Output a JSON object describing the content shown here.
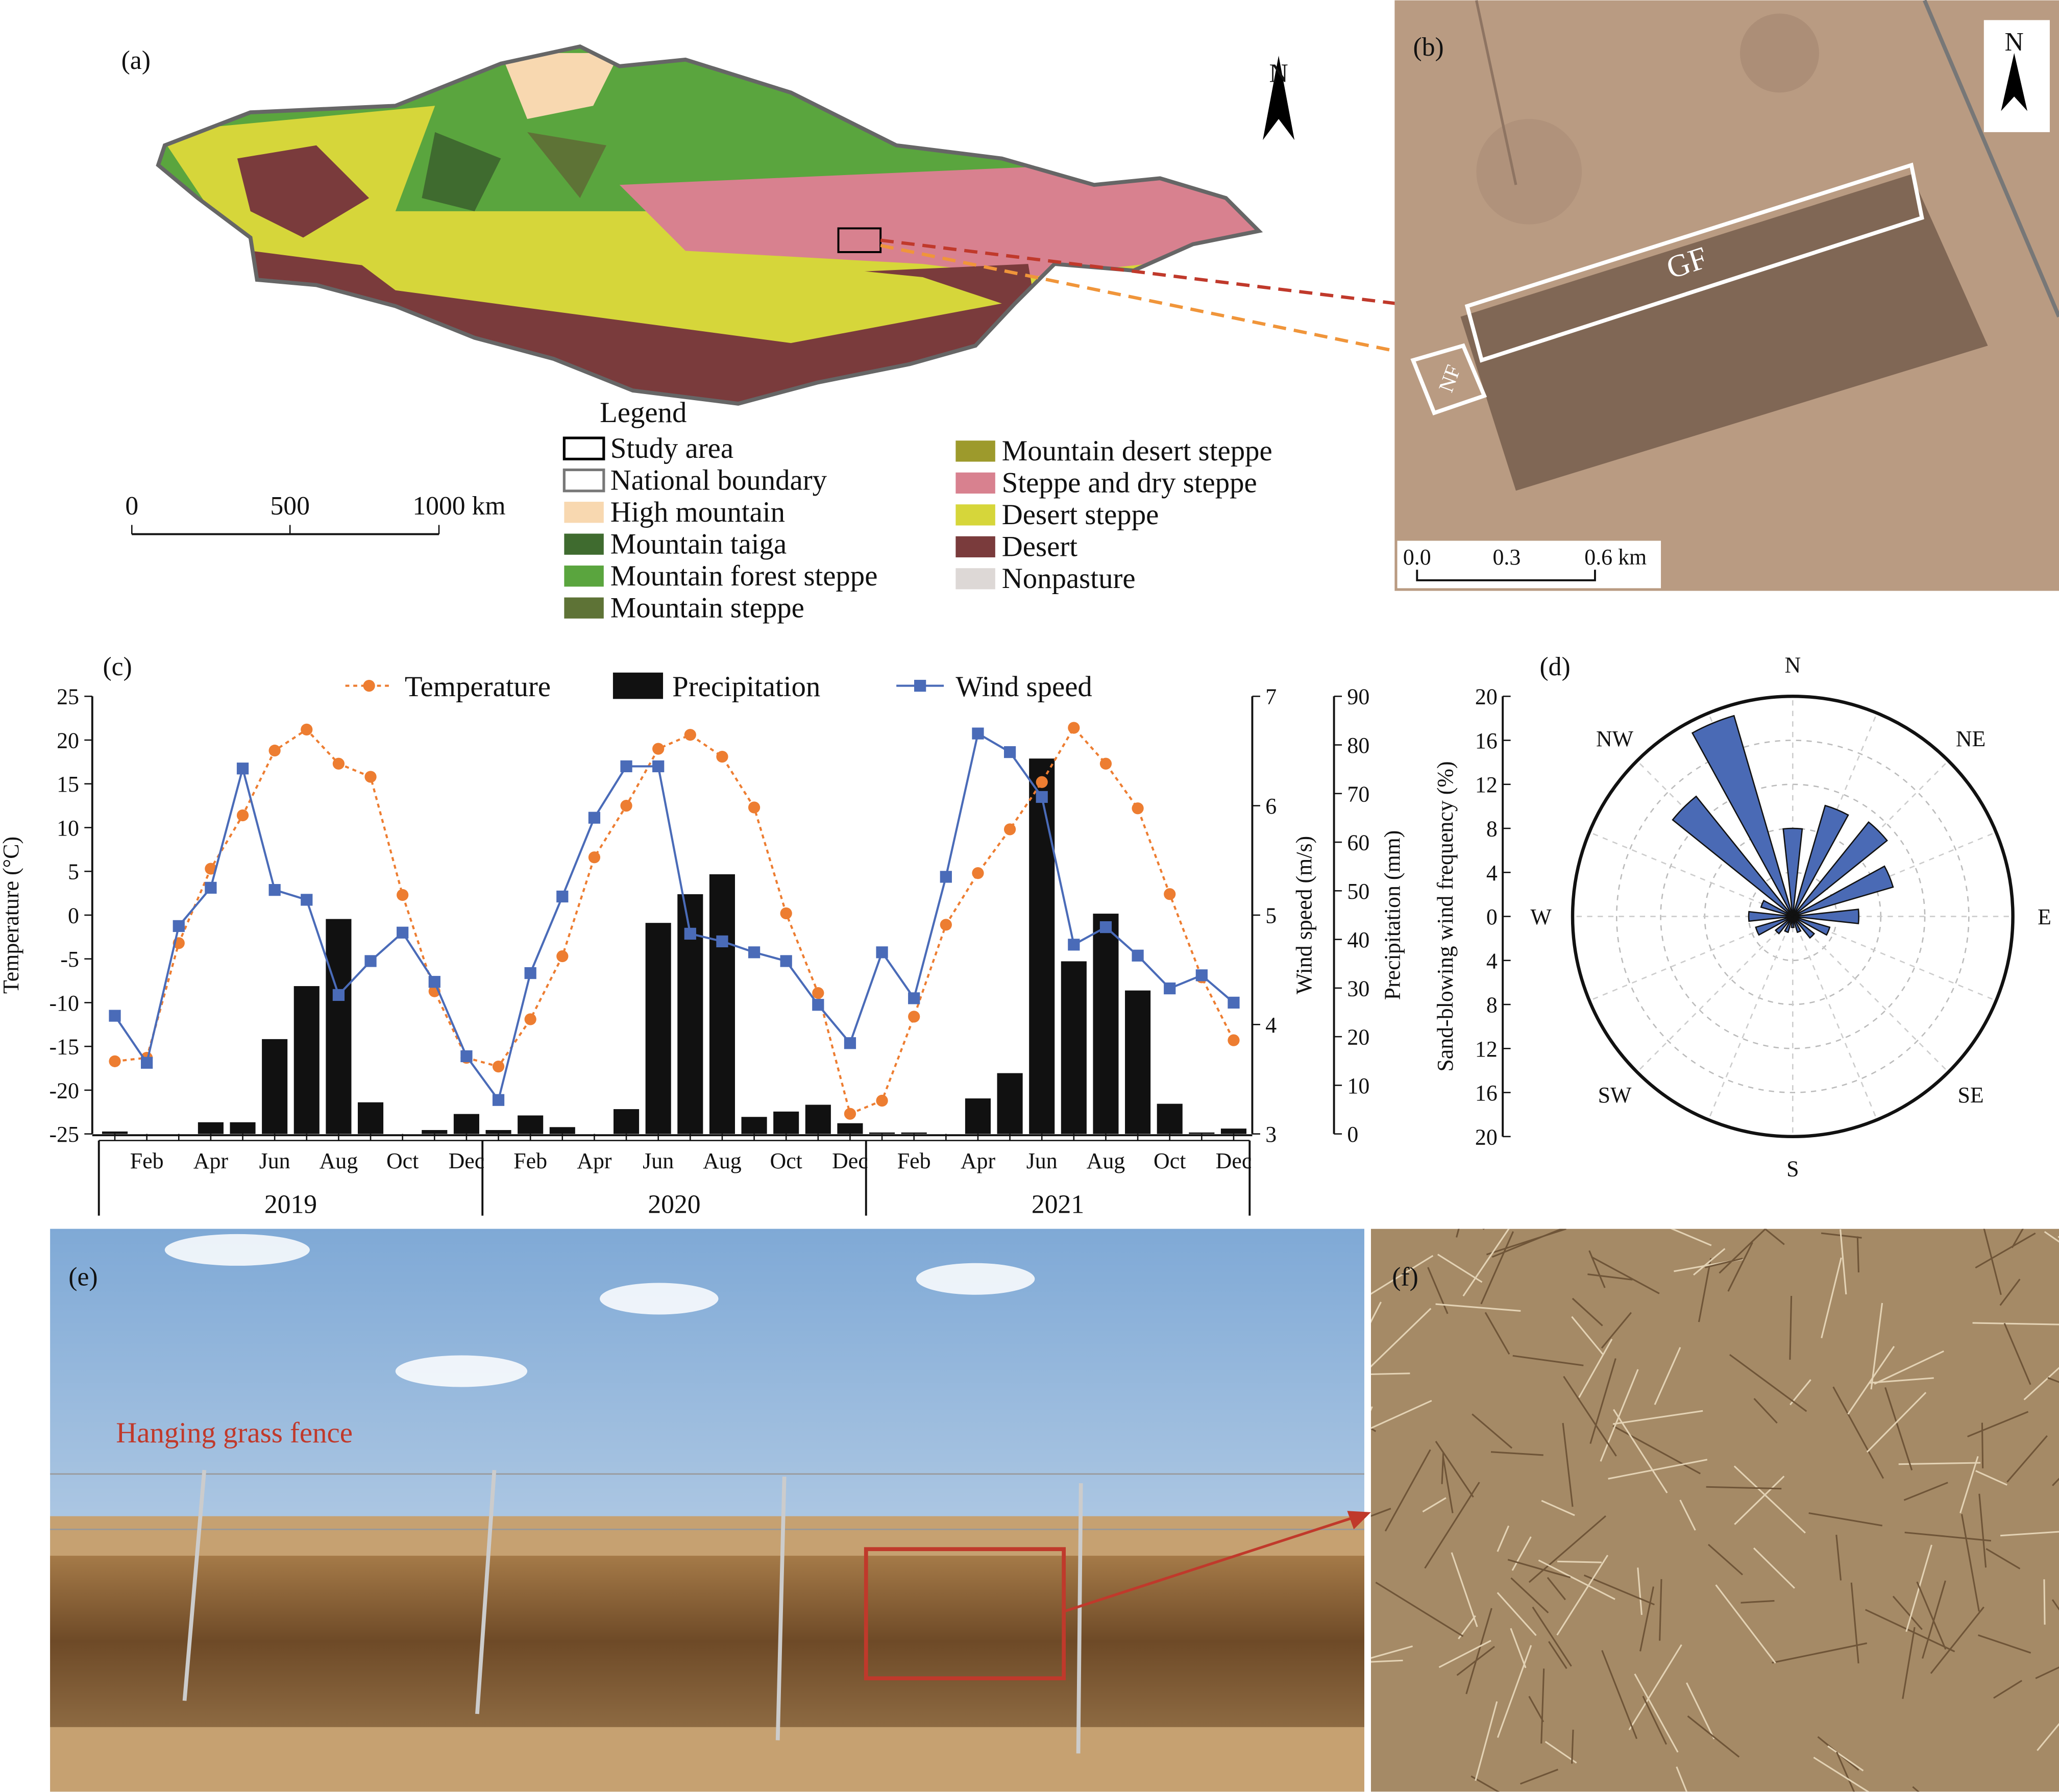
{
  "panels": {
    "a": {
      "label": "(a)",
      "north": "N",
      "legend_title": "Legend",
      "scale": [
        "0",
        "500",
        "1000 km"
      ],
      "legend": [
        {
          "label": "Study area",
          "color": "#ffffff",
          "outline": "#000000"
        },
        {
          "label": "National boundary",
          "color": "#ffffff",
          "outline": "#777777"
        },
        {
          "label": "High mountain",
          "color": "#f8d8b0"
        },
        {
          "label": "Mountain taiga",
          "color": "#3f6b2f"
        },
        {
          "label": "Mountain forest steppe",
          "color": "#5aa53e"
        },
        {
          "label": "Mountain steppe",
          "color": "#5e7336"
        },
        {
          "label": "Mountain desert steppe",
          "color": "#9d9a2c"
        },
        {
          "label": "Steppe and dry steppe",
          "color": "#d8818f"
        },
        {
          "label": "Desert steppe",
          "color": "#d6d63a"
        },
        {
          "label": "Desert",
          "color": "#7a3b3c"
        },
        {
          "label": "Nonpasture",
          "color": "#ddd8d6"
        }
      ]
    },
    "b": {
      "label": "(b)",
      "north": "N",
      "plots": [
        "GF",
        "NF"
      ],
      "scale": [
        "0.0",
        "0.3",
        "0.6 km"
      ]
    },
    "e": {
      "label": "(e)",
      "annotation": "Hanging grass fence"
    },
    "f": {
      "label": "(f)"
    }
  },
  "chart_data": [
    {
      "type": "combo",
      "label": "(c)",
      "categories": [
        null,
        "Feb",
        null,
        "Apr",
        null,
        "Jun",
        null,
        "Aug",
        null,
        "Oct",
        null,
        "Dec",
        null,
        "Feb",
        null,
        "Apr",
        null,
        "Jun",
        null,
        "Aug",
        null,
        "Oct",
        null,
        "Dec",
        null,
        "Feb",
        null,
        "Apr",
        null,
        "Jun",
        null,
        "Aug",
        null,
        "Oct",
        null,
        "Dec"
      ],
      "years": [
        "2019",
        "2020",
        "2021"
      ],
      "ylabel": "Temperature (°C)",
      "ylim": [
        -25,
        25
      ],
      "yticks": [
        -25,
        -20,
        -15,
        -10,
        -5,
        0,
        5,
        10,
        15,
        20,
        25
      ],
      "y2label": "Wind speed (m/s)",
      "y2lim": [
        3,
        7
      ],
      "y2ticks": [
        3,
        4,
        5,
        6,
        7
      ],
      "y3label": "Precipitation (mm)",
      "y3lim": [
        0,
        90
      ],
      "y3ticks": [
        0,
        10,
        20,
        30,
        40,
        50,
        60,
        70,
        80,
        90
      ],
      "series": [
        {
          "name": "Temperature",
          "type": "line",
          "axis": "y",
          "color": "#ed7d31",
          "marker": "circle",
          "linestyle": "dotted",
          "values": [
            -16.7,
            -16.3,
            -3.2,
            5.3,
            11.4,
            18.8,
            21.2,
            17.3,
            15.8,
            2.3,
            -8.7,
            -16.3,
            -17.3,
            -11.9,
            -4.7,
            6.6,
            12.5,
            19.0,
            20.6,
            18.1,
            12.3,
            0.2,
            -8.9,
            -22.7,
            -21.2,
            -11.6,
            -1.1,
            4.8,
            9.8,
            15.2,
            21.4,
            17.3,
            12.2,
            2.4,
            -7.1,
            -14.3
          ]
        },
        {
          "name": "Precipitation",
          "type": "bar",
          "axis": "y3",
          "color": "#111111",
          "values": [
            0.5,
            0,
            0,
            2.4,
            2.4,
            19.5,
            30.4,
            44.2,
            6.5,
            0,
            0.8,
            4.1,
            0.8,
            3.8,
            1.4,
            0,
            5.1,
            43.4,
            49.3,
            53.4,
            3.5,
            4.6,
            6.0,
            2.2,
            0.3,
            0.3,
            0,
            7.3,
            12.5,
            77.2,
            35.5,
            45.3,
            29.5,
            6.2,
            0.3,
            1.1
          ]
        },
        {
          "name": "Wind speed",
          "type": "line",
          "axis": "y2",
          "color": "#4a6bb8",
          "marker": "square",
          "linestyle": "solid",
          "values": [
            4.08,
            3.65,
            4.9,
            5.25,
            6.34,
            5.23,
            5.14,
            4.27,
            4.58,
            4.84,
            4.39,
            3.71,
            3.31,
            4.47,
            5.17,
            5.89,
            6.36,
            6.36,
            4.83,
            4.76,
            4.66,
            4.58,
            4.18,
            3.83,
            4.66,
            4.24,
            5.35,
            6.66,
            6.49,
            6.08,
            4.73,
            4.89,
            4.63,
            4.33,
            4.45,
            4.2
          ]
        }
      ]
    },
    {
      "type": "rose",
      "label": "(d)",
      "ylabel": "Sand-blowing wind frequency (%)",
      "categories": [
        "N",
        null,
        "NE",
        null,
        "E",
        null,
        "SE",
        null,
        "S",
        null,
        "SW",
        null,
        "W",
        null,
        "NW",
        null
      ],
      "values": [
        8,
        10.5,
        11,
        9.5,
        6,
        3.5,
        2.5,
        1.5,
        1,
        1.5,
        2,
        3.5,
        4,
        3,
        14,
        19
      ],
      "color": "#4a6ab5",
      "rlim": [
        0,
        20
      ],
      "rticks": [
        0,
        4,
        8,
        12,
        16,
        20
      ],
      "grid": true
    }
  ]
}
